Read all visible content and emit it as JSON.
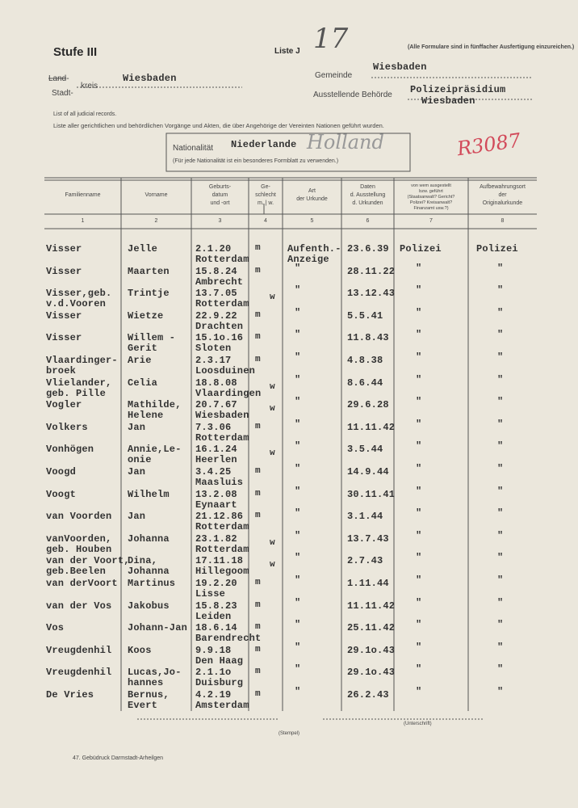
{
  "header": {
    "stufe": "Stufe III",
    "liste": "Liste J",
    "list_number": "17",
    "note": "(Alle Formulare sind in fünffacher Ausfertigung einzureichen.)",
    "land_label": "Land-",
    "stadt_label": "Stadt-",
    "kreis_label": "kreis",
    "kreis_value": "Wiesbaden",
    "gemeinde_label": "Gemeinde",
    "gemeinde_value": "Wiesbaden",
    "authority_label": "Ausstellende Behörde",
    "authority_value": [
      "Polizeipräsidium",
      "Wiesbaden"
    ],
    "intro_en": "List of all judicial records.",
    "intro_de": "Liste aller gerichtlichen und behördlichen Vorgänge und Akten, die über Angehörige der Vereinten Nationen geführt wurden.",
    "nationality_label": "Nationalität",
    "nationality_value": "Niederlande",
    "nationality_handwritten": "Holland",
    "nationality_note": "(Für jede Nationalität ist ein besonderes Formblatt zu verwenden.)",
    "stamp": "R3087"
  },
  "table": {
    "columns": [
      {
        "title": [
          "Familienname"
        ],
        "number": "1"
      },
      {
        "title": [
          "Vorname"
        ],
        "number": "2"
      },
      {
        "title": [
          "Geburts-",
          "datum",
          "und -ort"
        ],
        "number": "3"
      },
      {
        "title": [
          "Ge-",
          "schlecht",
          "m. | w."
        ],
        "number": "4"
      },
      {
        "title": [
          "Art",
          "der Urkunde"
        ],
        "number": "5"
      },
      {
        "title": [
          "Daten",
          "d. Ausstellung",
          "d. Urkunden"
        ],
        "number": "6"
      },
      {
        "title": [
          "von wem ausgestellt",
          "bzw. geführt",
          "(Staatsanwalt? Gericht?",
          "Polizei? Kreisanwalt?",
          "Finanzamt usw.?)"
        ],
        "number": "7"
      },
      {
        "title": [
          "Aufbewahrungsort",
          "der",
          "Originalurkunde"
        ],
        "number": "8"
      }
    ],
    "rows": [
      {
        "surname": [
          "Visser"
        ],
        "first_name": [
          "Jelle"
        ],
        "birth_date": "2.1.20",
        "birth_place": "Rotterdam",
        "sex": "m",
        "document_type": [
          "Aufenth.-",
          "Anzeige"
        ],
        "issue_date": "23.6.39",
        "issuer": "Polizei",
        "archive": "Polizei"
      },
      {
        "surname": [
          "Visser"
        ],
        "first_name": [
          "Maarten"
        ],
        "birth_date": "15.8.24",
        "birth_place": "Ambrecht",
        "sex": "m",
        "document_type": [
          "\""
        ],
        "issue_date": "28.11.22",
        "issuer": "\"",
        "archive": "\""
      },
      {
        "surname": [
          "Visser,geb.",
          "v.d.Vooren"
        ],
        "first_name": [
          "Trintje"
        ],
        "birth_date": "13.7.05",
        "birth_place": "Rotterdam",
        "sex": "w",
        "document_type": [
          "\""
        ],
        "issue_date": "13.12.43",
        "issuer": "\"",
        "archive": "\""
      },
      {
        "surname": [
          "Visser"
        ],
        "first_name": [
          "Wietze"
        ],
        "birth_date": "22.9.22",
        "birth_place": "Drachten",
        "sex": "m",
        "document_type": [
          "\""
        ],
        "issue_date": "5.5.41",
        "issuer": "\"",
        "archive": "\""
      },
      {
        "surname": [
          "Visser"
        ],
        "first_name": [
          "Willem -",
          "Gerit"
        ],
        "birth_date": "15.1o.16",
        "birth_place": "Sloten",
        "sex": "m",
        "document_type": [
          "\""
        ],
        "issue_date": "11.8.43",
        "issuer": "\"",
        "archive": "\""
      },
      {
        "surname": [
          "Vlaardinger-",
          "broek"
        ],
        "first_name": [
          "Arie"
        ],
        "birth_date": "2.3.17",
        "birth_place": "Loosduinen",
        "sex": "m",
        "document_type": [
          "\""
        ],
        "issue_date": "4.8.38",
        "issuer": "\"",
        "archive": "\""
      },
      {
        "surname": [
          "Vlielander,",
          "geb. Pille"
        ],
        "first_name": [
          "Celia"
        ],
        "birth_date": "18.8.08",
        "birth_place": "Vlaardingen",
        "sex": "w",
        "document_type": [
          "\""
        ],
        "issue_date": "8.6.44",
        "issuer": "\"",
        "archive": "\""
      },
      {
        "surname": [
          "Vogler"
        ],
        "first_name": [
          "Mathilde,",
          "Helene"
        ],
        "birth_date": "20.7.67",
        "birth_place": "Wiesbaden",
        "sex": "w",
        "document_type": [
          "\""
        ],
        "issue_date": "29.6.28",
        "issuer": "\"",
        "archive": "\""
      },
      {
        "surname": [
          "Volkers"
        ],
        "first_name": [
          "Jan"
        ],
        "birth_date": "7.3.06",
        "birth_place": "Rotterdam",
        "sex": "m",
        "document_type": [
          "\""
        ],
        "issue_date": "11.11.42",
        "issuer": "\"",
        "archive": "\""
      },
      {
        "surname": [
          "Vonhögen"
        ],
        "first_name": [
          "Annie,Le-",
          "onie"
        ],
        "birth_date": "16.1.24",
        "birth_place": "Heerlen",
        "sex": "w",
        "document_type": [
          "\""
        ],
        "issue_date": "3.5.44",
        "issuer": "\"",
        "archive": "\""
      },
      {
        "surname": [
          "Voogd"
        ],
        "first_name": [
          "Jan"
        ],
        "birth_date": "3.4.25",
        "birth_place": "Maasluis",
        "sex": "m",
        "document_type": [
          "\""
        ],
        "issue_date": "14.9.44",
        "issuer": "\"",
        "archive": "\""
      },
      {
        "surname": [
          "Voogt"
        ],
        "first_name": [
          "Wilhelm"
        ],
        "birth_date": "13.2.08",
        "birth_place": "Eynaart",
        "sex": "m",
        "document_type": [
          "\""
        ],
        "issue_date": "30.11.41",
        "issuer": "\"",
        "archive": "\""
      },
      {
        "surname": [
          "van Voorden"
        ],
        "first_name": [
          "Jan"
        ],
        "birth_date": "21.12.86",
        "birth_place": "Rotterdam",
        "sex": "m",
        "document_type": [
          "\""
        ],
        "issue_date": "3.1.44",
        "issuer": "\"",
        "archive": "\""
      },
      {
        "surname": [
          "vanVoorden,",
          "geb. Houben"
        ],
        "first_name": [
          "Johanna"
        ],
        "birth_date": "23.1.82",
        "birth_place": "Rotterdam",
        "sex": "w",
        "document_type": [
          "\""
        ],
        "issue_date": "13.7.43",
        "issuer": "\"",
        "archive": "\""
      },
      {
        "surname": [
          "van der Voort,",
          "geb.Beelen"
        ],
        "first_name": [
          "Dina,",
          "Johanna"
        ],
        "birth_date": "17.11.18",
        "birth_place": "Hillegoom",
        "sex": "w",
        "document_type": [
          "\""
        ],
        "issue_date": "2.7.43",
        "issuer": "\"",
        "archive": "\""
      },
      {
        "surname": [
          "van derVoort"
        ],
        "first_name": [
          "Martinus"
        ],
        "birth_date": "19.2.20",
        "birth_place": "Lisse",
        "sex": "m",
        "document_type": [
          "\""
        ],
        "issue_date": "1.11.44",
        "issuer": "\"",
        "archive": "\""
      },
      {
        "surname": [
          "van der Vos"
        ],
        "first_name": [
          "Jakobus"
        ],
        "birth_date": "15.8.23",
        "birth_place": "Leiden",
        "sex": "m",
        "document_type": [
          "\""
        ],
        "issue_date": "11.11.42",
        "issuer": "\"",
        "archive": "\""
      },
      {
        "surname": [
          "Vos"
        ],
        "first_name": [
          "Johann-Jan"
        ],
        "birth_date": "18.6.14",
        "birth_place": "Barendrecht",
        "sex": "m",
        "document_type": [
          "\""
        ],
        "issue_date": "25.11.42",
        "issuer": "\"",
        "archive": "\""
      },
      {
        "surname": [
          "Vreugdenhil"
        ],
        "first_name": [
          "Koos"
        ],
        "birth_date": "9.9.18",
        "birth_place": "Den Haag",
        "sex": "m",
        "document_type": [
          "\""
        ],
        "issue_date": "29.1o.43",
        "issuer": "\"",
        "archive": "\""
      },
      {
        "surname": [
          "Vreugdenhil"
        ],
        "first_name": [
          "Lucas,Jo-",
          "hannes"
        ],
        "birth_date": "2.1.1o",
        "birth_place": "Duisburg",
        "sex": "m",
        "document_type": [
          "\""
        ],
        "issue_date": "29.1o.43",
        "issuer": "\"",
        "archive": "\""
      },
      {
        "surname": [
          "De Vries"
        ],
        "first_name": [
          "Bernus,",
          "Evert"
        ],
        "birth_date": "4.2.19",
        "birth_place": "Amsterdam",
        "sex": "m",
        "document_type": [
          "\""
        ],
        "issue_date": "26.2.43",
        "issuer": "\"",
        "archive": "\""
      }
    ]
  },
  "footer": {
    "stamp_caption": "(Stempel)",
    "signature_caption": "(Unterschrift)",
    "printer": "47. Gebüdruck Darmstadt-Arheilgen"
  }
}
